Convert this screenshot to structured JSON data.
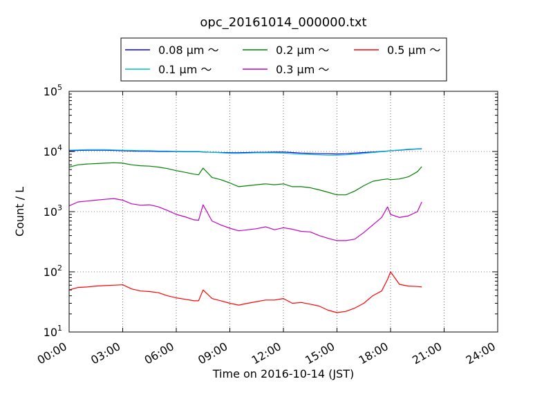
{
  "title": "opc_20161014_000000.txt",
  "chart_data": {
    "type": "line",
    "title": "opc_20161014_000000.txt",
    "xlabel": "Time on 2016-10-14 (JST)",
    "ylabel": "Count / L",
    "xlim": [
      "00:00",
      "24:00"
    ],
    "ylim": [
      10,
      100000
    ],
    "yscale": "log",
    "grid": true,
    "legend_position": "top",
    "x_ticks": [
      "00:00",
      "03:00",
      "06:00",
      "09:00",
      "12:00",
      "15:00",
      "18:00",
      "21:00",
      "24:00"
    ],
    "y_ticks": [
      {
        "base": "10",
        "exp": "1"
      },
      {
        "base": "10",
        "exp": "2"
      },
      {
        "base": "10",
        "exp": "3"
      },
      {
        "base": "10",
        "exp": "4"
      },
      {
        "base": "10",
        "exp": "5"
      }
    ],
    "x": [
      "00:00",
      "00:30",
      "01:00",
      "01:30",
      "02:00",
      "02:30",
      "03:00",
      "03:30",
      "04:00",
      "04:30",
      "05:00",
      "05:30",
      "06:00",
      "06:30",
      "07:00",
      "07:15",
      "07:30",
      "08:00",
      "08:30",
      "09:00",
      "09:30",
      "10:00",
      "10:30",
      "11:00",
      "11:30",
      "12:00",
      "12:30",
      "13:00",
      "13:30",
      "14:00",
      "14:30",
      "15:00",
      "15:30",
      "16:00",
      "16:30",
      "17:00",
      "17:30",
      "17:50",
      "18:00",
      "18:30",
      "19:00",
      "19:30",
      "19:45"
    ],
    "series": [
      {
        "name": "0.08 μm ～",
        "color": "#0000ff",
        "values": [
          10300,
          10400,
          10500,
          10500,
          10500,
          10400,
          10300,
          10200,
          10100,
          10100,
          10000,
          10000,
          10000,
          9900,
          9900,
          9900,
          9800,
          9700,
          9600,
          9500,
          9500,
          9600,
          9700,
          9700,
          9800,
          9800,
          9600,
          9400,
          9300,
          9200,
          9200,
          9100,
          9200,
          9400,
          9600,
          9800,
          10000,
          10200,
          10300,
          10500,
          10800,
          11000,
          11100
        ]
      },
      {
        "name": "0.1 μm ～",
        "color": "#00bfbf",
        "values": [
          10500,
          10600,
          10700,
          10700,
          10700,
          10600,
          10500,
          10400,
          10300,
          10300,
          10200,
          10200,
          10100,
          10000,
          10000,
          10000,
          9900,
          9700,
          9500,
          9300,
          9300,
          9400,
          9500,
          9500,
          9500,
          9400,
          9200,
          9000,
          8900,
          8800,
          8700,
          8700,
          8800,
          9000,
          9300,
          9600,
          9900,
          10100,
          10300,
          10600,
          10900,
          11100,
          11200
        ]
      },
      {
        "name": "0.2 μm ～",
        "color": "#008000",
        "values": [
          5500,
          6000,
          6200,
          6300,
          6400,
          6500,
          6400,
          6000,
          5800,
          5700,
          5500,
          5200,
          4800,
          4500,
          4200,
          4100,
          5300,
          3700,
          3400,
          3000,
          2600,
          2700,
          2800,
          2900,
          2800,
          2900,
          2600,
          2600,
          2500,
          2300,
          2100,
          1900,
          1900,
          2200,
          2700,
          3200,
          3400,
          3500,
          3400,
          3500,
          3800,
          4600,
          5600
        ]
      },
      {
        "name": "0.3 μm ～",
        "color": "#bf00bf",
        "values": [
          1250,
          1450,
          1500,
          1550,
          1600,
          1650,
          1550,
          1350,
          1280,
          1300,
          1200,
          1050,
          900,
          820,
          730,
          720,
          1300,
          700,
          600,
          530,
          480,
          500,
          520,
          560,
          500,
          540,
          510,
          470,
          460,
          400,
          360,
          330,
          330,
          350,
          450,
          600,
          800,
          1200,
          900,
          800,
          850,
          1000,
          1450
        ]
      },
      {
        "name": "0.5 μm ～",
        "color": "#ff0000",
        "values": [
          50,
          55,
          56,
          58,
          59,
          60,
          61,
          52,
          48,
          47,
          45,
          40,
          37,
          35,
          33,
          33,
          50,
          36,
          33,
          30,
          28,
          30,
          32,
          34,
          34,
          36,
          30,
          31,
          29,
          27,
          23,
          21,
          22,
          25,
          30,
          40,
          48,
          75,
          100,
          62,
          58,
          57,
          56
        ]
      }
    ]
  }
}
